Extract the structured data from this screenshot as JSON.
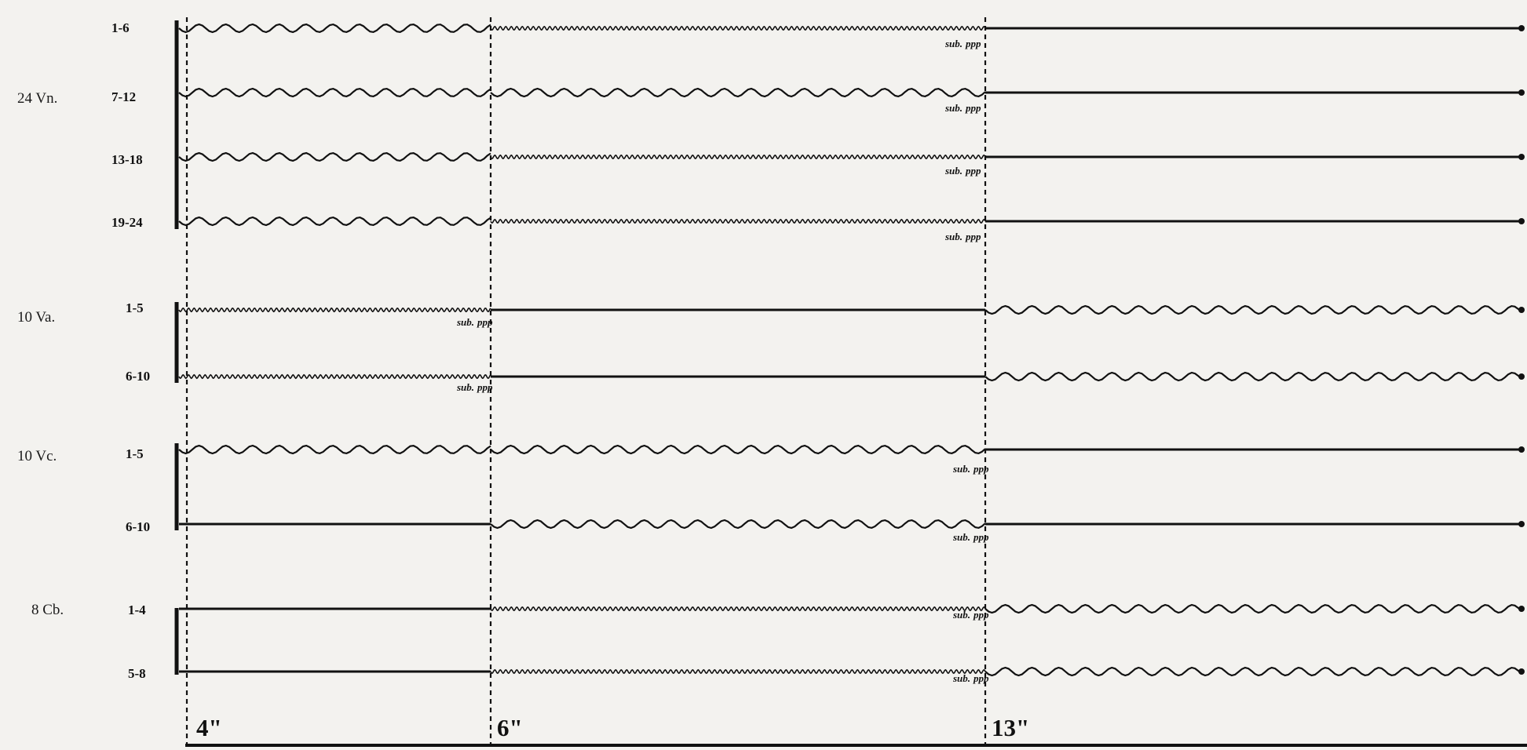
{
  "sections": [
    {
      "label": "24 Vn.",
      "groups": [
        "1-6",
        "7-12",
        "13-18",
        "19-24"
      ]
    },
    {
      "label": "10 Va.",
      "groups": [
        "1-5",
        "6-10"
      ]
    },
    {
      "label": "10 Vc.",
      "groups": [
        "1-5",
        "6-10"
      ]
    },
    {
      "label": "8 Cb.",
      "groups": [
        "1-4",
        "5-8"
      ]
    }
  ],
  "dynamic": {
    "sub": "sub.",
    "ppp": "ppp"
  },
  "time_marks": [
    "4\"",
    "6\"",
    "13\""
  ],
  "colors": {
    "ink": "#111111",
    "paper": "#f3f2ef"
  },
  "staff_parts": [
    [
      "wavy",
      "fast-trill",
      "straight"
    ],
    [
      "wavy",
      "wavy",
      "straight"
    ],
    [
      "wavy",
      "fast-trill",
      "straight"
    ],
    [
      "wavy",
      "fast-trill",
      "straight"
    ],
    [
      "fast-trill",
      "straight",
      "wavy"
    ],
    [
      "fast-trill",
      "straight",
      "wavy"
    ],
    [
      "wavy",
      "wavy",
      "straight"
    ],
    [
      "straight",
      "wavy",
      "straight"
    ],
    [
      "straight",
      "fast-trill",
      "wavy"
    ],
    [
      "straight",
      "fast-trill",
      "wavy"
    ]
  ]
}
